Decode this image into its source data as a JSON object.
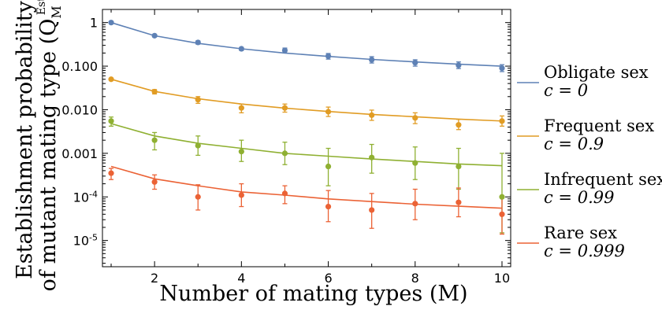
{
  "chart_data": {
    "type": "scatter",
    "xlabel": "Number of mating types (M)",
    "ylabel_line1": "Establishment probability",
    "ylabel_line2": "of mutant mating type (Q",
    "ylabel_sub": "M",
    "ylabel_sup": "Est",
    "ylabel_close": ")",
    "xlim": [
      0.8,
      10.2
    ],
    "ylim": [
      2.5e-06,
      2
    ],
    "y_scale": "log",
    "x_ticks": [
      2,
      4,
      6,
      8,
      10
    ],
    "y_ticks": [
      {
        "value": 1,
        "label": "1"
      },
      {
        "value": 0.1,
        "label": "0.100"
      },
      {
        "value": 0.01,
        "label": "0.010"
      },
      {
        "value": 0.001,
        "label": "0.001"
      },
      {
        "value": 0.0001,
        "label": "10",
        "exp": "-4"
      },
      {
        "value": 1e-05,
        "label": "10",
        "exp": "-5"
      }
    ],
    "grid": false,
    "legend_position": "right",
    "series": [
      {
        "name": "Obligate sex",
        "param": "c = 0",
        "color": "#5e81b5",
        "x": [
          1,
          2,
          3,
          4,
          5,
          6,
          7,
          8,
          9,
          10
        ],
        "y": [
          1.0,
          0.5,
          0.35,
          0.25,
          0.23,
          0.17,
          0.14,
          0.12,
          0.105,
          0.09
        ],
        "err_low": [
          0.95,
          0.47,
          0.32,
          0.23,
          0.2,
          0.145,
          0.118,
          0.1,
          0.088,
          0.075
        ],
        "err_high": [
          1.05,
          0.53,
          0.38,
          0.27,
          0.26,
          0.195,
          0.165,
          0.14,
          0.125,
          0.108
        ],
        "fit": [
          1.0,
          0.5,
          0.333,
          0.25,
          0.2,
          0.167,
          0.143,
          0.125,
          0.111,
          0.1
        ]
      },
      {
        "name": "Frequent sex",
        "param": "c = 0.9",
        "color": "#e19c24",
        "x": [
          1,
          2,
          3,
          4,
          5,
          6,
          7,
          8,
          9,
          10
        ],
        "y": [
          0.05,
          0.026,
          0.017,
          0.011,
          0.011,
          0.009,
          0.0075,
          0.0065,
          0.0045,
          0.0055
        ],
        "err_low": [
          0.047,
          0.023,
          0.014,
          0.0085,
          0.0088,
          0.007,
          0.0057,
          0.0048,
          0.0035,
          0.0042
        ],
        "err_high": [
          0.053,
          0.029,
          0.02,
          0.0135,
          0.0135,
          0.0115,
          0.0098,
          0.0085,
          0.006,
          0.0072
        ],
        "fit": [
          0.05,
          0.0263,
          0.0179,
          0.0135,
          0.0109,
          0.0091,
          0.0078,
          0.0069,
          0.0061,
          0.0055
        ]
      },
      {
        "name": "Infrequent sex",
        "param": "c = 0.99",
        "color": "#8fb032",
        "x": [
          1,
          2,
          3,
          4,
          5,
          6,
          7,
          8,
          9,
          10
        ],
        "y": [
          0.0055,
          0.002,
          0.0015,
          0.0011,
          0.001,
          0.0005,
          0.0008,
          0.0006,
          0.0005,
          0.0001
        ],
        "err_low": [
          0.0042,
          0.0012,
          0.0009,
          0.00065,
          0.00055,
          0.00018,
          0.00035,
          0.00025,
          0.00015,
          1.5e-05
        ],
        "err_high": [
          0.0068,
          0.003,
          0.0025,
          0.002,
          0.0018,
          0.0013,
          0.0016,
          0.0014,
          0.0013,
          0.001
        ],
        "fit": [
          0.0048,
          0.0025,
          0.0017,
          0.0013,
          0.001,
          0.00086,
          0.00074,
          0.00065,
          0.00057,
          0.00052
        ]
      },
      {
        "name": "Rare sex",
        "param": "c = 0.999",
        "color": "#eb6235",
        "x": [
          1,
          2,
          3,
          4,
          5,
          6,
          7,
          8,
          9,
          10
        ],
        "y": [
          0.00035,
          0.00022,
          0.0001,
          0.00011,
          0.00012,
          6e-05,
          5e-05,
          7e-05,
          7.5e-05,
          4e-05
        ],
        "err_low": [
          0.00025,
          0.00015,
          5e-05,
          6e-05,
          7e-05,
          2.7e-05,
          1.9e-05,
          3e-05,
          3.5e-05,
          1.4e-05
        ],
        "err_high": [
          0.00045,
          0.00032,
          0.00019,
          0.0002,
          0.00018,
          0.00014,
          0.00012,
          0.00015,
          0.00016,
          0.0001
        ],
        "fit": [
          0.0005,
          0.00026,
          0.00018,
          0.00013,
          0.00011,
          9e-05,
          7.8e-05,
          6.8e-05,
          6.1e-05,
          5.5e-05
        ]
      }
    ]
  }
}
